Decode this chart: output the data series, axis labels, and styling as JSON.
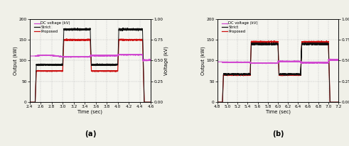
{
  "chart_a": {
    "title": "(a)",
    "xlim": [
      2.4,
      4.6
    ],
    "xticks": [
      2.4,
      2.6,
      2.8,
      3.0,
      3.2,
      3.4,
      3.6,
      3.8,
      4.0,
      4.2,
      4.4,
      4.6
    ],
    "xlabel": "Time (sec)",
    "ylabel_left": "Output (kW)",
    "ylabel_right": "Voltage (kV)",
    "ylim_left": [
      0,
      200
    ],
    "ylim_right": [
      0.0,
      1.0
    ],
    "yticks_left": [
      0,
      50,
      100,
      150,
      200
    ],
    "yticks_right": [
      0.0,
      0.25,
      0.5,
      0.75,
      1.0
    ],
    "dc_voltage_color": "#d048d0",
    "strict_color": "#111111",
    "proposed_color": "#cc1111",
    "grid_color": "#bbbbbb",
    "bg_color": "#f5f5f0",
    "strict_low": 90,
    "strict_high": 175,
    "proposed_low": 75,
    "proposed_high": 150,
    "dc_base": 0.555,
    "pulse1_start": 2.52,
    "pulse1_end": 2.54,
    "pulse1_low_end": 3.0,
    "pulse2_start": 3.0,
    "pulse2_end": 3.02,
    "pulse2_low_end": 3.5,
    "pulse3_start": 3.5,
    "pulse3_end": 3.52,
    "pulse3_low_end": 4.0,
    "pulse4_start": 4.0,
    "pulse4_end": 4.02,
    "pulse4_low_end": 4.45,
    "drop_start": 4.45,
    "drop_end": 4.48
  },
  "chart_b": {
    "title": "(b)",
    "xlim": [
      4.8,
      7.2
    ],
    "xticks": [
      4.8,
      5.0,
      5.2,
      5.4,
      5.6,
      5.8,
      6.0,
      6.2,
      6.4,
      6.6,
      6.8,
      7.0,
      7.2
    ],
    "xlabel": "Time (sec)",
    "ylabel_left": "Output (kW)",
    "ylabel_right": "Voltage (kV)",
    "ylim_left": [
      0,
      200
    ],
    "ylim_right": [
      0.0,
      1.0
    ],
    "yticks_left": [
      0,
      50,
      100,
      150,
      200
    ],
    "yticks_right": [
      0.0,
      0.25,
      0.5,
      0.75,
      1.0
    ],
    "dc_voltage_color": "#d048d0",
    "strict_color": "#111111",
    "proposed_color": "#cc1111",
    "grid_color": "#bbbbbb",
    "bg_color": "#f5f5f0",
    "strict_low": 67,
    "strict_high": 140,
    "proposed_low": 65,
    "proposed_high": 145,
    "dc_base": 0.48
  },
  "legend": {
    "dc_label": "DC voltage (kV)",
    "strict_label": "Strict",
    "proposed_label": "Proposed"
  },
  "fig": {
    "bg_color": "#f0f0e8",
    "label_fontsize": 4.8,
    "tick_fontsize": 4.2,
    "legend_fontsize": 3.8,
    "title_fontsize": 7
  }
}
